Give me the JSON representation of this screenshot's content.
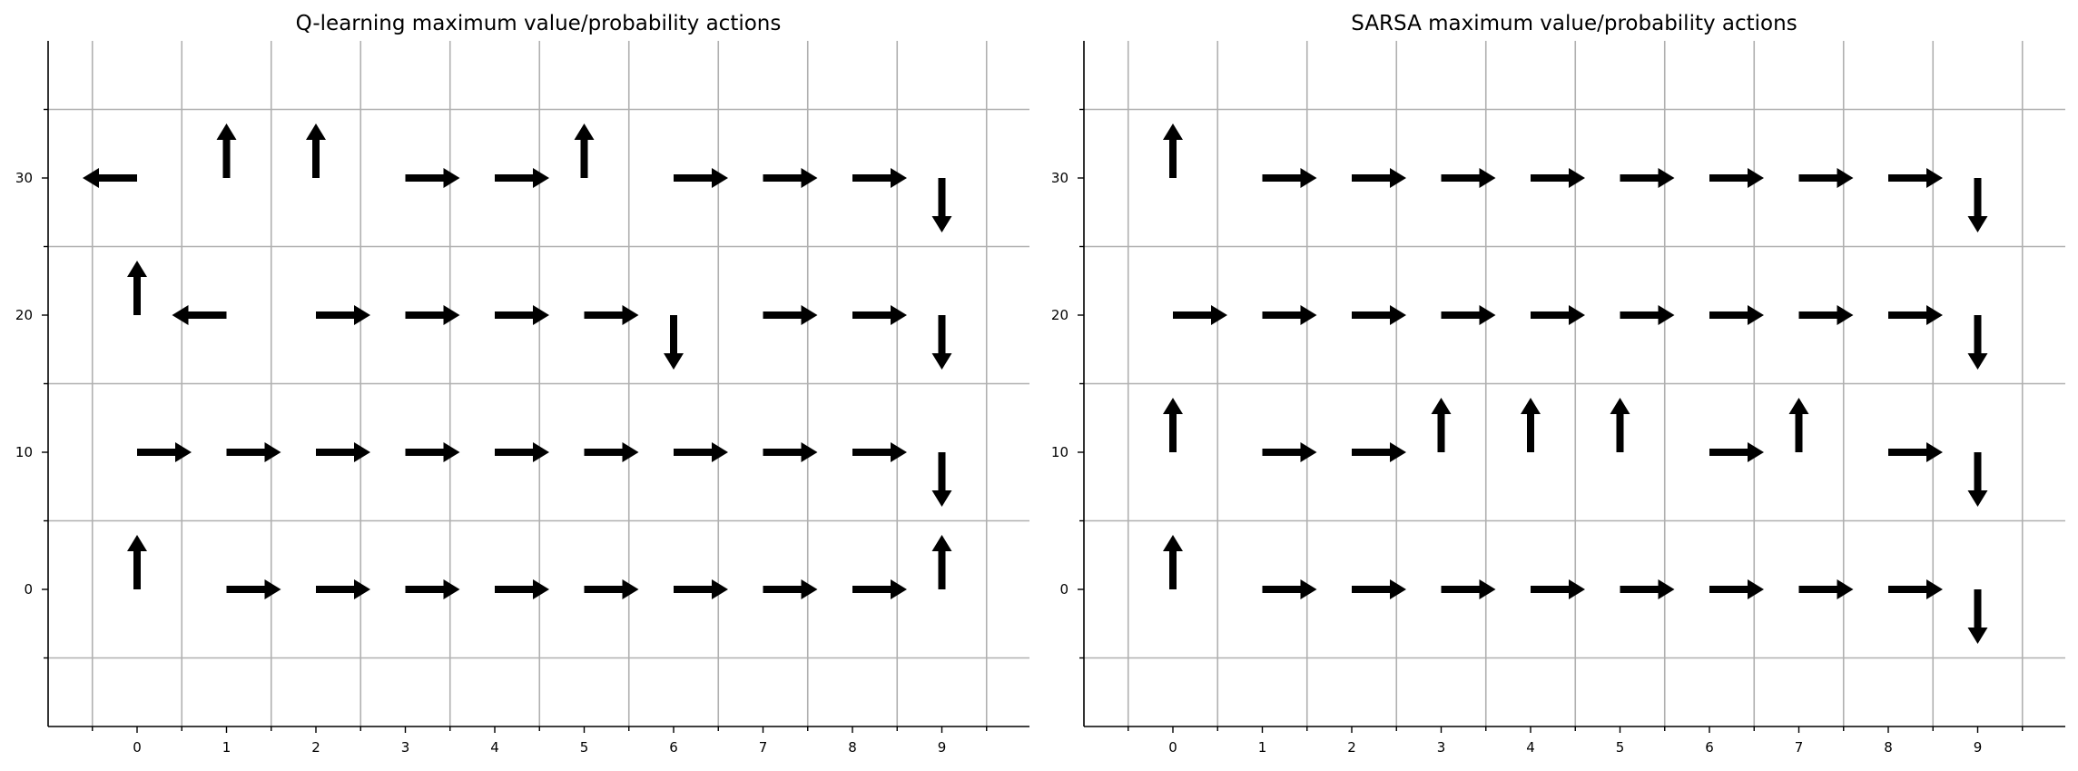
{
  "chart_data": [
    {
      "type": "quiver",
      "title": "Q-learning maximum value/probability actions",
      "x_ticks": [
        "0",
        "1",
        "2",
        "3",
        "4",
        "5",
        "6",
        "7",
        "8",
        "9"
      ],
      "y_ticks": [
        "0",
        "10",
        "20",
        "30"
      ],
      "xlim": [
        -1,
        10
      ],
      "ylim": [
        -10,
        40
      ],
      "grid": true,
      "rows": [
        {
          "y": 30,
          "actions": [
            "left",
            "up",
            "up",
            "right",
            "right",
            "up",
            "right",
            "right",
            "right",
            "down"
          ]
        },
        {
          "y": 20,
          "actions": [
            "up",
            "left",
            "right",
            "right",
            "right",
            "right",
            "down",
            "right",
            "right",
            "down"
          ]
        },
        {
          "y": 10,
          "actions": [
            "right",
            "right",
            "right",
            "right",
            "right",
            "right",
            "right",
            "right",
            "right",
            "down"
          ]
        },
        {
          "y": 0,
          "actions": [
            "up",
            "right",
            "right",
            "right",
            "right",
            "right",
            "right",
            "right",
            "right",
            "up"
          ]
        }
      ]
    },
    {
      "type": "quiver",
      "title": "SARSA maximum value/probability actions",
      "x_ticks": [
        "0",
        "1",
        "2",
        "3",
        "4",
        "5",
        "6",
        "7",
        "8",
        "9"
      ],
      "y_ticks": [
        "0",
        "10",
        "20",
        "30"
      ],
      "xlim": [
        -1,
        10
      ],
      "ylim": [
        -10,
        40
      ],
      "grid": true,
      "rows": [
        {
          "y": 30,
          "actions": [
            "up",
            "right",
            "right",
            "right",
            "right",
            "right",
            "right",
            "right",
            "right",
            "down"
          ]
        },
        {
          "y": 20,
          "actions": [
            "right",
            "right",
            "right",
            "right",
            "right",
            "right",
            "right",
            "right",
            "right",
            "down"
          ]
        },
        {
          "y": 10,
          "actions": [
            "up",
            "right",
            "right",
            "up",
            "up",
            "up",
            "right",
            "up",
            "right",
            "down"
          ]
        },
        {
          "y": 0,
          "actions": [
            "up",
            "right",
            "right",
            "right",
            "right",
            "right",
            "right",
            "right",
            "right",
            "down"
          ]
        }
      ]
    }
  ]
}
